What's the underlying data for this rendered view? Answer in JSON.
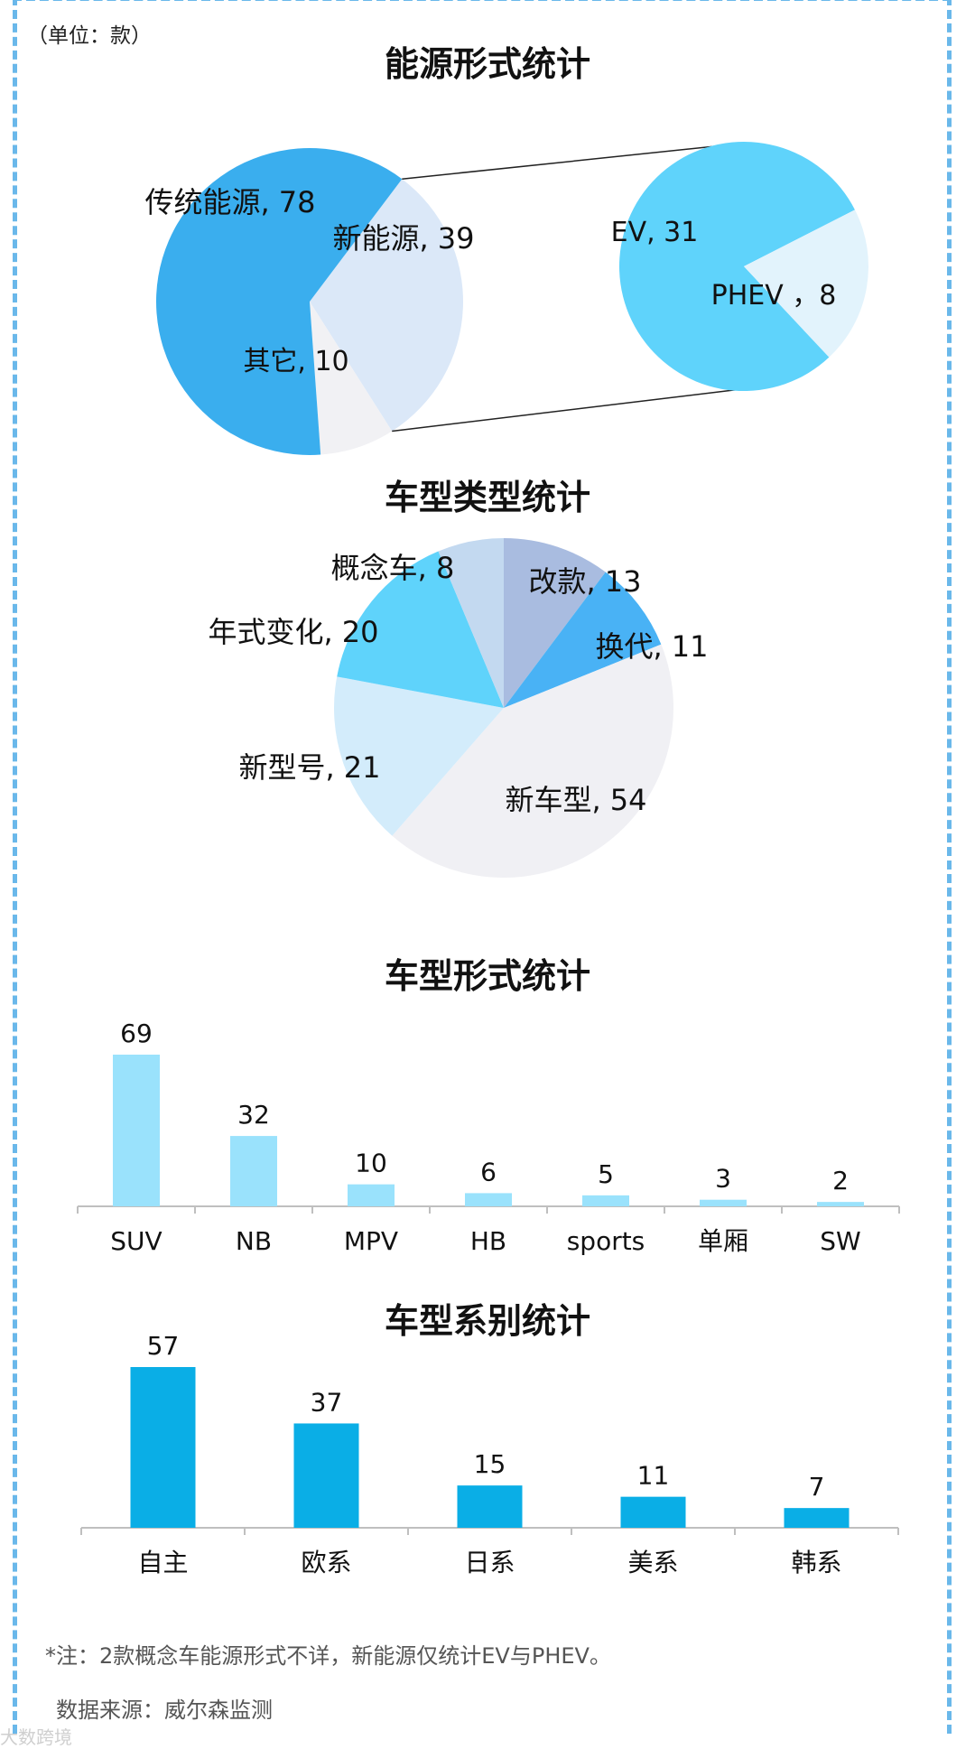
{
  "unit_note": "（单位：款）",
  "titles": {
    "energy": "能源形式统计",
    "type": "车型类型统计",
    "form": "车型形式统计",
    "origin": "车型系别统计"
  },
  "footnote": "*注：2款概念车能源形式不详，新能源仅统计EV与PHEV。",
  "source": "数据来源：威尔森监测",
  "watermark": "大数跨境",
  "colors": {
    "frame": "#6ab8ea",
    "energy_traditional": "#3aaeee",
    "energy_new": "#dbe8f8",
    "energy_other": "#f1f1f4",
    "ev": "#5fd3fb",
    "phev": "#e2f3fc",
    "type_gaikuan": "#a9bce0",
    "type_huandai": "#49b2f5",
    "type_xinchexing": "#f0f0f4",
    "type_xinxinghao": "#d3ecfb",
    "type_nianshi": "#5fd3fb",
    "type_gainianche": "#c3d9f0",
    "form_bar": "#9ae2fc",
    "origin_bar": "#0aaee6",
    "axis": "#bfbfbf"
  },
  "chart_data": [
    {
      "id": "energy",
      "type": "pie",
      "title": "能源形式统计",
      "slices": [
        {
          "label": "传统能源",
          "value": 78,
          "text": "传统能源, 78"
        },
        {
          "label": "新能源",
          "value": 39,
          "text": "新能源, 39"
        },
        {
          "label": "其它",
          "value": 10,
          "text": "其它, 10"
        }
      ],
      "breakdown": {
        "of": "新能源",
        "type": "pie",
        "slices": [
          {
            "label": "EV",
            "value": 31,
            "text": "EV, 31"
          },
          {
            "label": "PHEV",
            "value": 8,
            "text": "PHEV ，8"
          }
        ]
      }
    },
    {
      "id": "type",
      "type": "pie",
      "title": "车型类型统计",
      "slices": [
        {
          "label": "改款",
          "value": 13,
          "text": "改款, 13"
        },
        {
          "label": "换代",
          "value": 11,
          "text": "换代, 11"
        },
        {
          "label": "新车型",
          "value": 54,
          "text": "新车型, 54"
        },
        {
          "label": "新型号",
          "value": 21,
          "text": "新型号, 21"
        },
        {
          "label": "年式变化",
          "value": 20,
          "text": "年式变化, 20"
        },
        {
          "label": "概念车",
          "value": 8,
          "text": "概念车, 8"
        }
      ]
    },
    {
      "id": "form",
      "type": "bar",
      "title": "车型形式统计",
      "categories": [
        "SUV",
        "NB",
        "MPV",
        "HB",
        "sports",
        "单厢",
        "SW"
      ],
      "values": [
        69,
        32,
        10,
        6,
        5,
        3,
        2
      ]
    },
    {
      "id": "origin",
      "type": "bar",
      "title": "车型系别统计",
      "categories": [
        "自主",
        "欧系",
        "日系",
        "美系",
        "韩系"
      ],
      "values": [
        57,
        37,
        15,
        11,
        7
      ]
    }
  ]
}
